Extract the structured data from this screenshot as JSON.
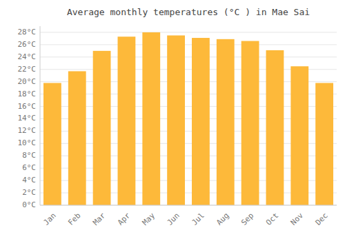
{
  "chart_data": {
    "type": "bar",
    "title": "Average monthly temperatures (°C ) in Mae Sai",
    "categories": [
      "Jan",
      "Feb",
      "Mar",
      "Apr",
      "May",
      "Jun",
      "Jul",
      "Aug",
      "Sep",
      "Oct",
      "Nov",
      "Dec"
    ],
    "values": [
      19.8,
      21.7,
      25.0,
      27.3,
      28.0,
      27.5,
      27.1,
      26.9,
      26.6,
      25.1,
      22.5,
      19.8
    ],
    "color": "#FDB93A",
    "ylim": [
      0,
      29
    ],
    "yticks": [
      {
        "value": 0,
        "label": "0°C"
      },
      {
        "value": 2,
        "label": "2°C"
      },
      {
        "value": 4,
        "label": "4°C"
      },
      {
        "value": 6,
        "label": "6°C"
      },
      {
        "value": 8,
        "label": "8°C"
      },
      {
        "value": 10,
        "label": "10°C"
      },
      {
        "value": 12,
        "label": "12°C"
      },
      {
        "value": 14,
        "label": "14°C"
      },
      {
        "value": 16,
        "label": "16°C"
      },
      {
        "value": 18,
        "label": "18°C"
      },
      {
        "value": 20,
        "label": "20°C"
      },
      {
        "value": 22,
        "label": "22°C"
      },
      {
        "value": 24,
        "label": "24°C"
      },
      {
        "value": 26,
        "label": "26°C"
      },
      {
        "value": 28,
        "label": "28°C"
      }
    ],
    "grid": true
  }
}
